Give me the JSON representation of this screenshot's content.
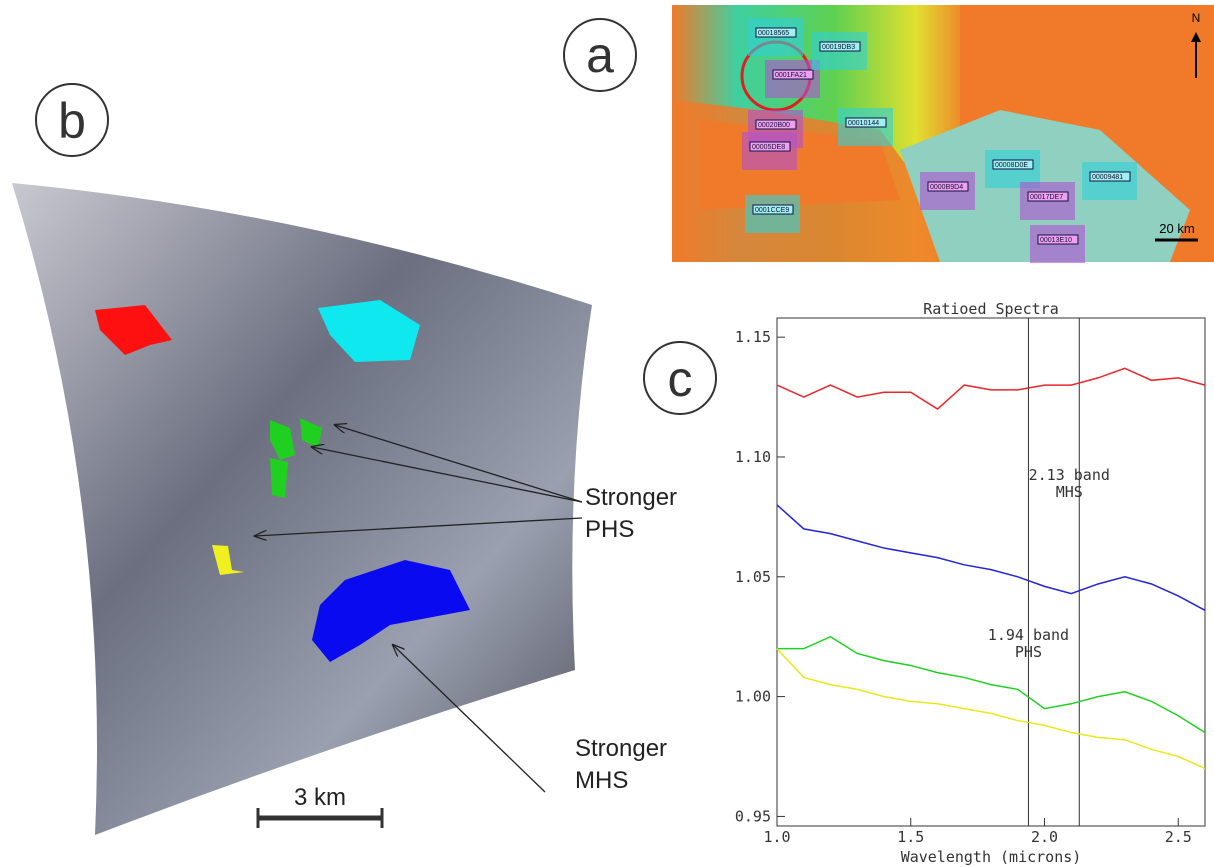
{
  "panels": {
    "a": "a",
    "b": "b",
    "c": "c"
  },
  "map": {
    "north": "N",
    "scale": "20 km",
    "tiles": [
      "00018565",
      "0001FA21",
      "00019DB3",
      "00020B00",
      "00010144",
      "00005DE8",
      "00008D0E",
      "0000B9D4",
      "00009481",
      "00017DE7",
      "0001CCE9",
      "00013E10"
    ]
  },
  "image": {
    "annotations": [
      {
        "line1": "Stronger",
        "line2": "PHS"
      },
      {
        "line1": "Stronger",
        "line2": "MHS"
      }
    ],
    "scale": "3 km"
  },
  "chart_data": {
    "type": "line",
    "title": "Ratioed Spectra",
    "x_label": "Wavelength (microns)",
    "x": [
      1.0,
      1.1,
      1.2,
      1.3,
      1.4,
      1.5,
      1.6,
      1.7,
      1.8,
      1.9,
      2.0,
      2.1,
      2.2,
      2.3,
      2.4,
      2.5,
      2.6
    ],
    "series": [
      {
        "color": "#e8262b",
        "values": [
          1.13,
          1.125,
          1.13,
          1.125,
          1.127,
          1.127,
          1.12,
          1.13,
          1.128,
          1.128,
          1.13,
          1.13,
          1.133,
          1.137,
          1.132,
          1.133,
          1.13
        ]
      },
      {
        "color": "#2424d8",
        "values": [
          1.08,
          1.07,
          1.068,
          1.065,
          1.062,
          1.06,
          1.058,
          1.055,
          1.053,
          1.05,
          1.046,
          1.043,
          1.047,
          1.05,
          1.047,
          1.042,
          1.036
        ]
      },
      {
        "color": "#22d022",
        "values": [
          1.02,
          1.02,
          1.025,
          1.018,
          1.015,
          1.013,
          1.01,
          1.008,
          1.005,
          1.003,
          0.995,
          0.997,
          1.0,
          1.002,
          0.998,
          0.992,
          0.985
        ]
      },
      {
        "color": "#e8e820",
        "values": [
          1.02,
          1.008,
          1.005,
          1.003,
          1.0,
          0.998,
          0.997,
          0.995,
          0.993,
          0.99,
          0.988,
          0.985,
          0.983,
          0.982,
          0.978,
          0.975,
          0.97
        ]
      }
    ],
    "xlim": [
      1.0,
      2.6
    ],
    "xticks": [
      {
        "value": 1.0,
        "label": "1.0"
      },
      1.5,
      {
        "value": 2.0,
        "label": "2.0"
      },
      2.5
    ],
    "ylim": [
      0.946,
      1.158
    ],
    "yticks": [
      0.95,
      {
        "value": 1.0,
        "label": "1.00"
      },
      1.05,
      {
        "value": 1.1,
        "label": "1.10"
      },
      1.15
    ],
    "markers": [
      {
        "x": 1.94,
        "label": "1.94 band",
        "sublabel": "PHS"
      },
      {
        "x": 2.13,
        "label": "2.13 band",
        "sublabel": "MHS"
      }
    ]
  }
}
